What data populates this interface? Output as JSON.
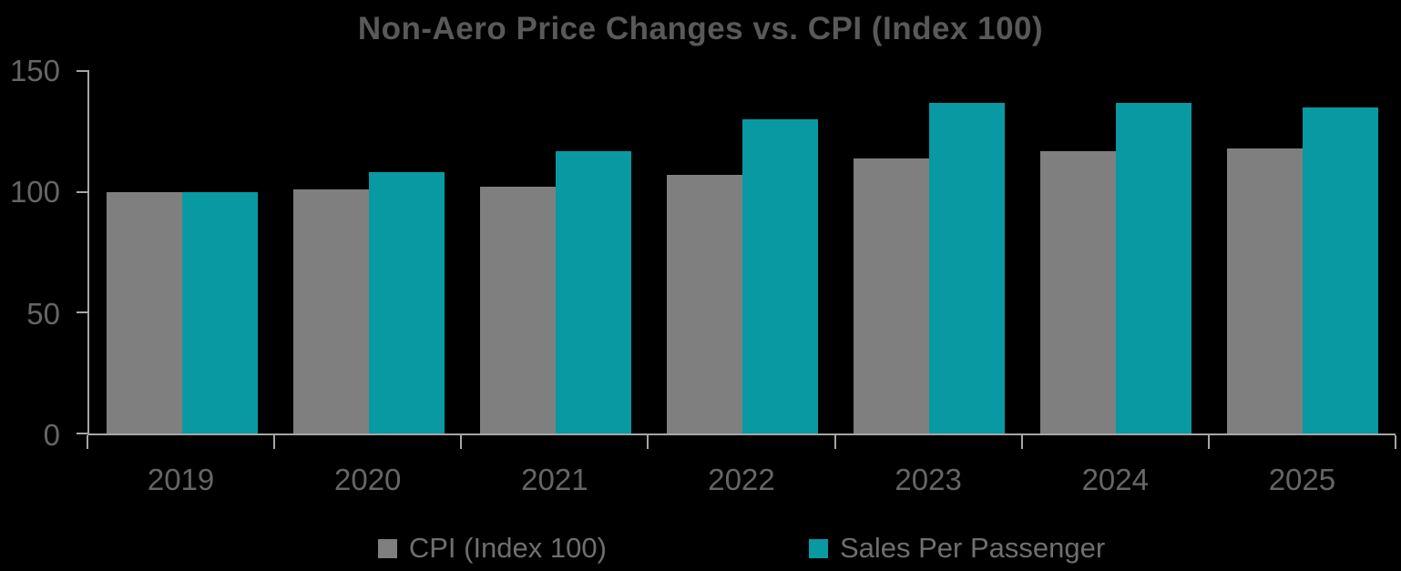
{
  "chart_data": {
    "type": "bar",
    "title": "Non-Aero Price Changes vs. CPI (Index 100)",
    "categories": [
      "2019",
      "2020",
      "2021",
      "2022",
      "2023",
      "2024",
      "2025"
    ],
    "series": [
      {
        "name": "CPI (Index 100)",
        "color": "#7F7F7F",
        "values": [
          100,
          101,
          102,
          107,
          114,
          117,
          118
        ]
      },
      {
        "name": "Sales Per Passenger",
        "color": "#0999A3",
        "values": [
          100,
          108,
          117,
          130,
          137,
          137,
          135
        ]
      }
    ],
    "xlabel": "",
    "ylabel": "",
    "ylim": [
      0,
      150
    ],
    "yticks": [
      0,
      50,
      100,
      150
    ],
    "grid": false,
    "legend_position": "bottom"
  },
  "colors": {
    "background": "#000000",
    "title_text": "#595959",
    "axis_label_text": "#666666",
    "legend_text": "#6F6F6F",
    "axis_line": "#A6A6A6",
    "bar_gray": "#7F7F7F",
    "bar_teal": "#0999A3"
  }
}
